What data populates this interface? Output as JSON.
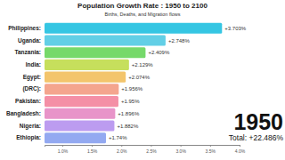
{
  "chart_data": {
    "type": "bar",
    "orientation": "horizontal",
    "title": "Population Growth Rate : 1950 to 2100",
    "subtitle": "Births, Deaths, and Migration flows",
    "categories": [
      "Philippines:",
      "Uganda:",
      "Tanzania:",
      "India:",
      "Egypt:",
      "(DRC):",
      "Pakistan:",
      "Bangladesh:",
      "Nigeria:",
      "Ethiopia:"
    ],
    "values": [
      3.703,
      2.748,
      2.409,
      2.129,
      2.074,
      1.956,
      1.95,
      1.896,
      1.882,
      1.74
    ],
    "value_labels": [
      "+3.703%",
      "+2.748%",
      "+2.409%",
      "+2.129%",
      "+2.074%",
      "+1.956%",
      "+1.95%",
      "+1.896%",
      "+1.882%",
      "+1.74%"
    ],
    "colors": [
      "#35c6e3",
      "#62cfe6",
      "#76d96a",
      "#c6df5c",
      "#f3c56c",
      "#f4a58e",
      "#f48fa6",
      "#e894c9",
      "#bc9cf0",
      "#93a9f1"
    ],
    "data_labels": true,
    "xlim": [
      0.7,
      4.0
    ],
    "xticks": [
      {
        "value": 1,
        "label": "1.0%"
      },
      {
        "value": 1.5,
        "label": "1.5%"
      },
      {
        "value": 2,
        "label": "2.0%"
      },
      {
        "value": 2.5,
        "label": "2.5%"
      },
      {
        "value": 3,
        "label": "3.0%"
      },
      {
        "value": 3.5,
        "label": "3.5%"
      },
      {
        "value": 4,
        "label": "4.0%"
      }
    ],
    "year_label": "1950",
    "total_label": "Total: +22.486%"
  }
}
